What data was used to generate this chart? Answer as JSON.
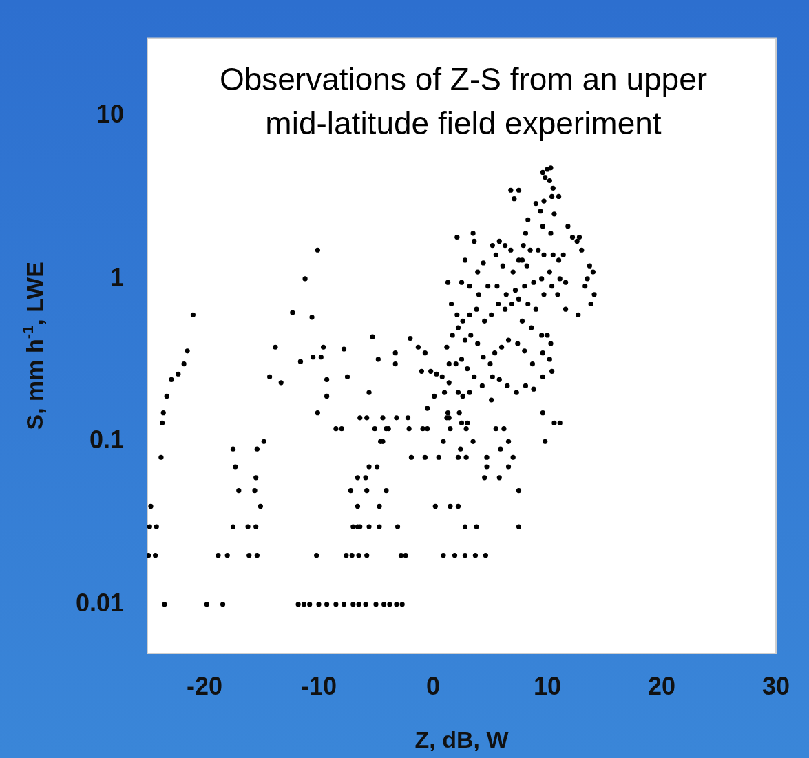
{
  "chart_data": {
    "type": "scatter",
    "title": "Observations of Z-S from an upper mid-latitude field experiment",
    "xlabel": "Z, dB, W",
    "ylabel": "S, mm h$^{-1}$, LWE",
    "log": "y",
    "xlim": [
      -25,
      30
    ],
    "xticks": [
      -20,
      -10,
      0,
      10,
      20,
      30
    ],
    "ylim": [
      0.005,
      30
    ],
    "yticks": [
      0.01,
      0.1,
      1,
      10
    ],
    "grid": false,
    "legend": false,
    "marker": "circle",
    "series": [
      {
        "color": "#000000",
        "x": [
          -23.5,
          -19.8,
          -18.4,
          -11.8,
          -11.3,
          -10.8,
          -10,
          -9.3,
          -8.5,
          -7.8,
          -7,
          -6.5,
          -5.9,
          -5,
          -4.3,
          -3.8,
          -3.2,
          -2.7,
          -24.9,
          -24.3,
          -18.8,
          -18,
          -16.1,
          -15.4,
          -10.2,
          -7.6,
          -7.1,
          -6.5,
          -5.8,
          -2.8,
          -2.4,
          0.9,
          1.9,
          2.8,
          3.7,
          4.6,
          -24.8,
          -24.2,
          -17.5,
          -16.2,
          -15.5,
          -7,
          -6.6,
          -6.4,
          -5.6,
          -4.7,
          -3.1,
          2.8,
          3.8,
          7.5,
          -24.7,
          -15.1,
          -6.6,
          -4.7,
          0.2,
          1.5,
          2.2,
          -17,
          -15.6,
          -7.2,
          -5.8,
          -4.1,
          7.5,
          -15.5,
          -6.6,
          -5.9,
          4.5,
          5.8,
          -17.3,
          -5.6,
          -4.9,
          4.7,
          6.6,
          -23.8,
          -1.9,
          -0.7,
          0.5,
          2.2,
          2.9,
          4.7,
          7,
          -17.5,
          -15.4,
          2.4,
          5.9,
          -14.8,
          -4.6,
          -4.4,
          0.9,
          3.5,
          6.6,
          9.8,
          -3.9,
          -2.1,
          1.5,
          2.9,
          5.5,
          6.2,
          10.6,
          -6.4,
          -5.8,
          -4.4,
          -3.2,
          -2.2,
          1.2,
          -8.5,
          -8,
          -5.1,
          -4.1,
          -0.9,
          -0.5,
          -23.7,
          -10.1,
          1.3,
          -23.6,
          -23.3,
          -22.9,
          -22.3,
          -21.8,
          -21.5,
          -21,
          -14.3,
          -13.8,
          -13.3,
          -12.3,
          -11.6,
          -11.2,
          -10.6,
          -10.5,
          -10.1,
          -9.8,
          -9.6,
          -9.3,
          -9.3,
          -7.8,
          -7.5,
          -5.6,
          -5.3,
          -4.8,
          -3.3,
          -3.3,
          -2,
          -1.3,
          -1,
          -0.7,
          9.6,
          10,
          10.3,
          9.8,
          10.2,
          10.5,
          10.4,
          9.7,
          9,
          9.4,
          11,
          10.6,
          7.5,
          6.8,
          7.1,
          8.3,
          9.6,
          10.3,
          8.1,
          7.9,
          7.8,
          8.2,
          12.2,
          12.8,
          11.8,
          13,
          11.4,
          12.6,
          13.7,
          14,
          13.5,
          13.3,
          14.1,
          13.8,
          12.7,
          11.6,
          2.1,
          3.5,
          3.6,
          2.8,
          3.9,
          4.4,
          5.2,
          5.8,
          6.3,
          6.8,
          5.5,
          6.1,
          7,
          7.5,
          8.5,
          9.2,
          9.7,
          10.5,
          11,
          10.2,
          9.5,
          8.8,
          8,
          7.2,
          6.4,
          5.6,
          4.8,
          4,
          3.2,
          2.5,
          1.3,
          1.6,
          2.1,
          2.6,
          3.2,
          3.8,
          4.5,
          5.1,
          5.7,
          6.3,
          6.9,
          7.5,
          8.3,
          9,
          9.7,
          10.4,
          11.1,
          11.6,
          10.9,
          7.8,
          8.6,
          9.5,
          10,
          10.3,
          9.6,
          10.2,
          10.4,
          9.6,
          8.7,
          8,
          7.4,
          6.6,
          6,
          5.4,
          5,
          4.4,
          3.9,
          3.3,
          2.8,
          2.2,
          1.7,
          1.2,
          1.4,
          2,
          2.5,
          3,
          3.6,
          4.3,
          5.2,
          5.8,
          6.5,
          7.3,
          8.1,
          8.8,
          9.6,
          11.1,
          3.2,
          2.6,
          2.2,
          1.4,
          0.8,
          0.3,
          -0.2,
          1,
          1.4,
          2.3,
          2.5,
          3,
          5.1,
          0.1,
          -0.5
        ],
        "values": [
          0.01,
          0.01,
          0.01,
          0.01,
          0.01,
          0.01,
          0.01,
          0.01,
          0.01,
          0.01,
          0.01,
          0.01,
          0.01,
          0.01,
          0.01,
          0.01,
          0.01,
          0.01,
          0.02,
          0.02,
          0.02,
          0.02,
          0.02,
          0.02,
          0.02,
          0.02,
          0.02,
          0.02,
          0.02,
          0.02,
          0.02,
          0.02,
          0.02,
          0.02,
          0.02,
          0.02,
          0.03,
          0.03,
          0.03,
          0.03,
          0.03,
          0.03,
          0.03,
          0.03,
          0.03,
          0.03,
          0.03,
          0.03,
          0.03,
          0.03,
          0.04,
          0.04,
          0.04,
          0.04,
          0.04,
          0.04,
          0.04,
          0.05,
          0.05,
          0.05,
          0.05,
          0.05,
          0.05,
          0.06,
          0.06,
          0.06,
          0.06,
          0.06,
          0.07,
          0.07,
          0.07,
          0.07,
          0.07,
          0.08,
          0.08,
          0.08,
          0.08,
          0.08,
          0.08,
          0.08,
          0.08,
          0.09,
          0.09,
          0.09,
          0.09,
          0.1,
          0.1,
          0.1,
          0.1,
          0.1,
          0.1,
          0.1,
          0.12,
          0.12,
          0.12,
          0.12,
          0.12,
          0.12,
          0.13,
          0.14,
          0.14,
          0.14,
          0.14,
          0.14,
          0.14,
          0.12,
          0.12,
          0.12,
          0.12,
          0.12,
          0.12,
          0.13,
          0.15,
          0.15,
          0.15,
          0.19,
          0.24,
          0.26,
          0.3,
          0.36,
          0.6,
          0.25,
          0.38,
          0.23,
          0.62,
          0.31,
          1,
          0.58,
          0.33,
          1.5,
          0.33,
          0.38,
          0.24,
          0.19,
          0.37,
          0.25,
          0.2,
          0.44,
          0.32,
          0.35,
          0.3,
          0.43,
          0.38,
          0.27,
          0.35,
          4.5,
          4.7,
          4.8,
          4.2,
          4,
          3.6,
          3.2,
          3,
          2.9,
          2.6,
          3.2,
          2.5,
          3.5,
          3.5,
          3.1,
          2.3,
          2.1,
          1.9,
          1.9,
          1.6,
          1.3,
          1.2,
          1.8,
          1.8,
          2.1,
          1.5,
          1.4,
          1.7,
          1.2,
          1.1,
          1,
          0.9,
          0.8,
          0.7,
          0.6,
          0.65,
          1.8,
          1.9,
          1.7,
          1.3,
          1.1,
          1.25,
          1.6,
          1.7,
          1.6,
          1.5,
          1.4,
          1.2,
          1.1,
          1.3,
          1.5,
          1.5,
          1.4,
          1.4,
          1.3,
          1.1,
          1,
          0.95,
          0.9,
          0.85,
          0.8,
          0.9,
          0.9,
          0.8,
          0.9,
          0.95,
          0.95,
          0.7,
          0.6,
          0.55,
          0.6,
          0.65,
          0.55,
          0.6,
          0.7,
          0.65,
          0.7,
          0.75,
          0.7,
          0.65,
          0.8,
          0.9,
          1,
          0.95,
          0.8,
          0.55,
          0.5,
          0.45,
          0.45,
          0.4,
          0.35,
          0.32,
          0.27,
          0.25,
          0.3,
          0.36,
          0.4,
          0.42,
          0.38,
          0.35,
          0.3,
          0.33,
          0.4,
          0.45,
          0.42,
          0.5,
          0.45,
          0.38,
          0.3,
          0.3,
          0.32,
          0.28,
          0.25,
          0.22,
          0.25,
          0.24,
          0.22,
          0.2,
          0.22,
          0.21,
          0.15,
          0.13,
          0.2,
          0.19,
          0.2,
          0.23,
          0.25,
          0.26,
          0.27,
          0.2,
          0.14,
          0.15,
          0.13,
          0.13,
          0.18,
          0.19,
          0.16
        ]
      }
    ]
  }
}
